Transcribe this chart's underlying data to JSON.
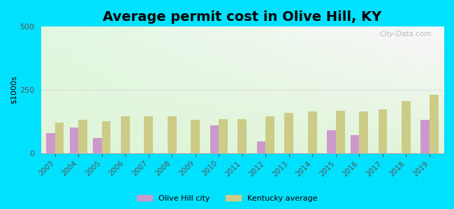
{
  "title": "Average permit cost in Olive Hill, KY",
  "years": [
    2003,
    2004,
    2005,
    2006,
    2007,
    2008,
    2009,
    2010,
    2011,
    2012,
    2013,
    2014,
    2015,
    2016,
    2017,
    2018,
    2019
  ],
  "olive_hill": [
    80,
    100,
    60,
    0,
    0,
    0,
    0,
    110,
    0,
    45,
    0,
    0,
    90,
    70,
    0,
    0,
    130
  ],
  "kentucky_avg": [
    120,
    130,
    125,
    145,
    145,
    145,
    130,
    135,
    135,
    145,
    158,
    163,
    168,
    163,
    172,
    205,
    230
  ],
  "olive_hill_color": "#cc99cc",
  "kentucky_color": "#cccc88",
  "background_outer": "#00e0ff",
  "ylabel": "$1000s",
  "ylim": [
    0,
    500
  ],
  "yticks": [
    0,
    250,
    500
  ],
  "title_fontsize": 14,
  "bar_width": 0.38,
  "legend_city": "Olive Hill city",
  "legend_state": "Kentucky average",
  "watermark": "City-Data.com"
}
